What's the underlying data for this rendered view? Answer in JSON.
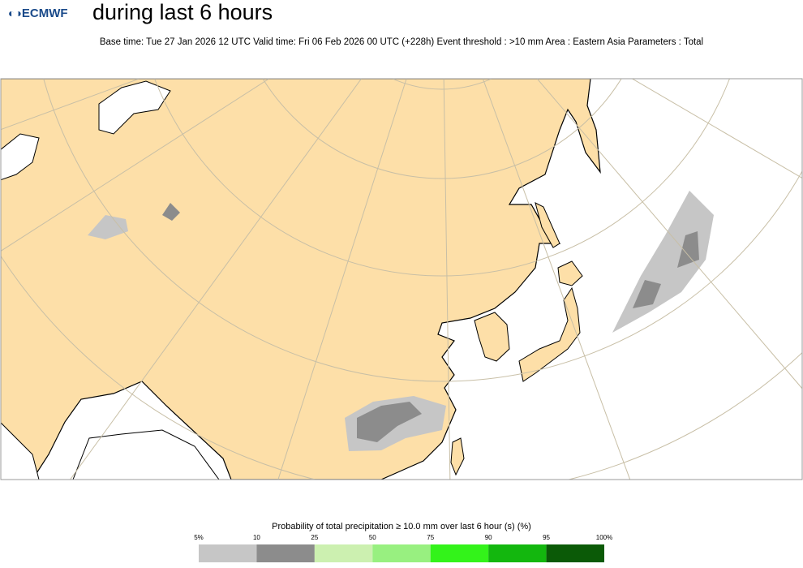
{
  "header": {
    "logo": "ECMWF",
    "title": "during last 6 hours",
    "subtitle": "Base time: Tue 27 Jan 2026 12 UTC Valid time: Fri 06 Feb 2026 00 UTC (+228h) Event threshold : >10 mm Area : Eastern Asia Parameters : Total"
  },
  "legend": {
    "title": "Probability of total precipitation ≥ 10.0 mm over last 6 hour (s) (%)",
    "labels": [
      "5%",
      "10",
      "25",
      "50",
      "75",
      "90",
      "95",
      "100%"
    ],
    "colors": [
      "#c6c6c6",
      "#8c8c8c",
      "#ccf0b0",
      "#98f080",
      "#33f31a",
      "#13b70e",
      "#0b5a07"
    ]
  }
}
